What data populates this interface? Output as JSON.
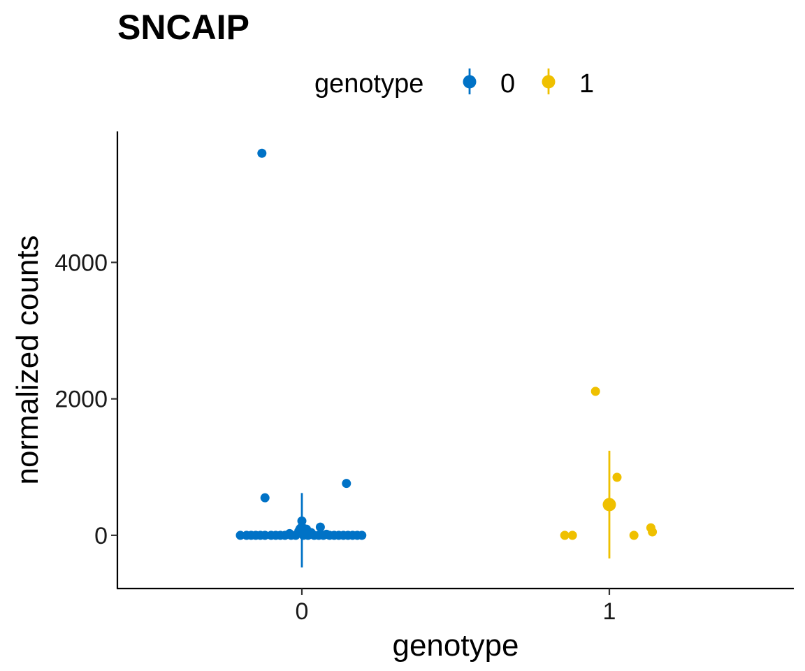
{
  "chart_data": {
    "type": "scatter",
    "title": "SNCAIP",
    "xlabel": "genotype",
    "ylabel": "normalized counts",
    "legend": {
      "title": "genotype",
      "position": "top",
      "entries": [
        {
          "label": "0",
          "color": "#0072C6"
        },
        {
          "label": "1",
          "color": "#EFC000"
        }
      ]
    },
    "categories": [
      "0",
      "1"
    ],
    "x_ticks": [
      "0",
      "1"
    ],
    "y_ticks": [
      0,
      2000,
      4000
    ],
    "y_tick_labels": [
      "0",
      "2000",
      "4000"
    ],
    "ylim": [
      -780,
      5920
    ],
    "xlim": [
      -0.6,
      1.6
    ],
    "grid": false,
    "series": [
      {
        "name": "0",
        "color": "#0072C6",
        "summary": {
          "x": 0,
          "mean": 80,
          "ymin": -470,
          "ymax": 620
        },
        "points": [
          {
            "x": -0.13,
            "y": 5600
          },
          {
            "x": -0.12,
            "y": 550
          },
          {
            "x": 0.145,
            "y": 760
          },
          {
            "x": 0.0,
            "y": 210
          },
          {
            "x": 0.06,
            "y": 120
          },
          {
            "x": 0.015,
            "y": 90
          },
          {
            "x": -0.01,
            "y": 60
          },
          {
            "x": 0.03,
            "y": 40
          },
          {
            "x": -0.04,
            "y": 25
          },
          {
            "x": 0.08,
            "y": 15
          },
          {
            "x": -0.2,
            "y": 0
          },
          {
            "x": -0.18,
            "y": 0
          },
          {
            "x": -0.165,
            "y": 0
          },
          {
            "x": -0.15,
            "y": 0
          },
          {
            "x": -0.135,
            "y": 0
          },
          {
            "x": -0.12,
            "y": 0
          },
          {
            "x": -0.1,
            "y": 0
          },
          {
            "x": -0.085,
            "y": 0
          },
          {
            "x": -0.07,
            "y": 0
          },
          {
            "x": -0.055,
            "y": 0
          },
          {
            "x": -0.035,
            "y": 0
          },
          {
            "x": -0.02,
            "y": 0
          },
          {
            "x": 0.005,
            "y": 0
          },
          {
            "x": 0.02,
            "y": 0
          },
          {
            "x": 0.04,
            "y": 0
          },
          {
            "x": 0.055,
            "y": 0
          },
          {
            "x": 0.07,
            "y": 0
          },
          {
            "x": 0.09,
            "y": 0
          },
          {
            "x": 0.105,
            "y": 0
          },
          {
            "x": 0.12,
            "y": 0
          },
          {
            "x": 0.135,
            "y": 0
          },
          {
            "x": 0.15,
            "y": 0
          },
          {
            "x": 0.165,
            "y": 0
          },
          {
            "x": 0.18,
            "y": 0
          },
          {
            "x": 0.195,
            "y": 0
          }
        ]
      },
      {
        "name": "1",
        "color": "#EFC000",
        "summary": {
          "x": 1,
          "mean": 450,
          "ymin": -340,
          "ymax": 1240
        },
        "points": [
          {
            "x": 0.955,
            "y": 2110
          },
          {
            "x": 1.025,
            "y": 850
          },
          {
            "x": 0.855,
            "y": 0
          },
          {
            "x": 0.88,
            "y": 0
          },
          {
            "x": 1.08,
            "y": 0
          },
          {
            "x": 1.135,
            "y": 110
          },
          {
            "x": 1.14,
            "y": 50
          }
        ]
      }
    ]
  }
}
